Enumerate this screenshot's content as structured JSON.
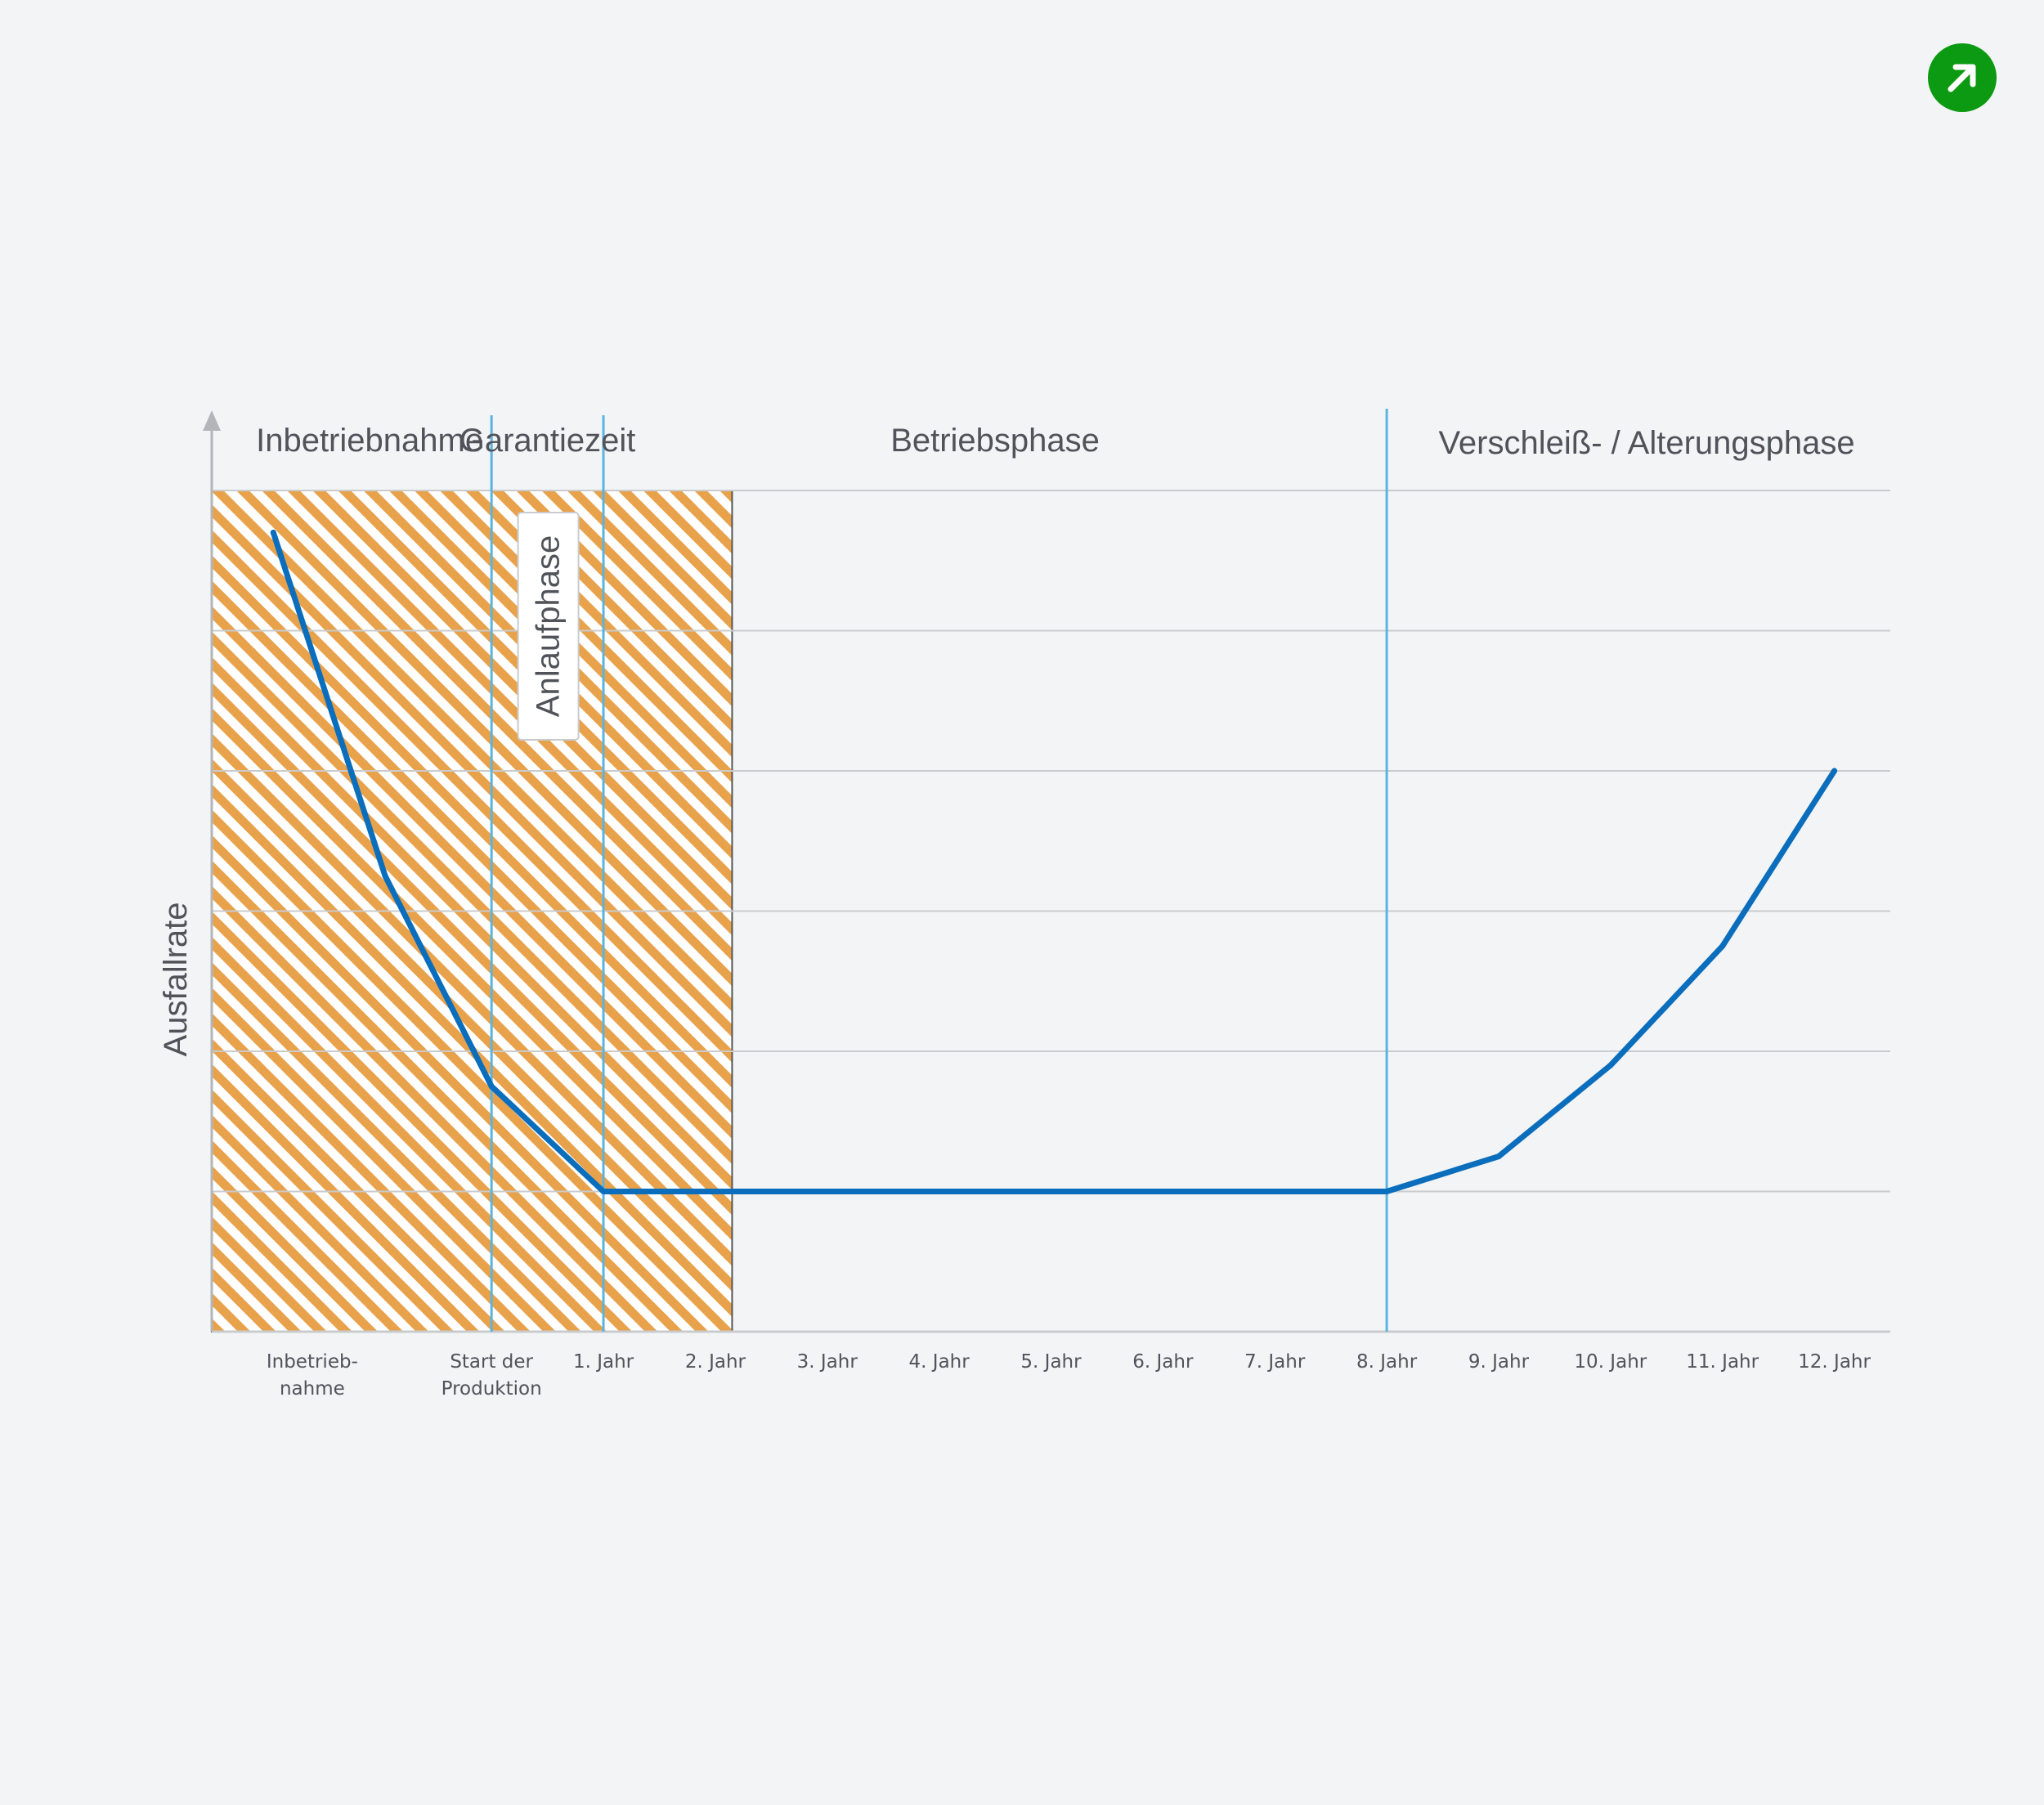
{
  "controls": {
    "expand_icon": "arrow-up-right-icon",
    "expand_color": "#0b9a12"
  },
  "chart_data": {
    "type": "line",
    "title": "",
    "ylabel": "Ausfallrate",
    "xlabel": "",
    "grid": true,
    "legend": "none",
    "categories": [
      "Inbetrieb-\nnahme",
      "",
      "Start der\nProduktion",
      "1. Jahr",
      "2. Jahr",
      "3. Jahr",
      "4. Jahr",
      "5. Jahr",
      "6. Jahr",
      "7. Jahr",
      "8. Jahr",
      "9. Jahr",
      "10. Jahr",
      "11. Jahr",
      "12. Jahr"
    ],
    "tick_labels": [
      {
        "index": 0.5,
        "text": "Inbetrieb-\nnahme"
      },
      {
        "index": 2.0,
        "text": "Start der\nProduktion"
      },
      {
        "index": 3.0,
        "text": "1. Jahr"
      },
      {
        "index": 4.0,
        "text": "2. Jahr"
      },
      {
        "index": 5.0,
        "text": "3. Jahr"
      },
      {
        "index": 6.0,
        "text": "4. Jahr"
      },
      {
        "index": 7.0,
        "text": "5. Jahr"
      },
      {
        "index": 8.0,
        "text": "6. Jahr"
      },
      {
        "index": 9.0,
        "text": "7. Jahr"
      },
      {
        "index": 10.0,
        "text": "8. Jahr"
      },
      {
        "index": 11.0,
        "text": "9. Jahr"
      },
      {
        "index": 12.0,
        "text": "10. Jahr"
      },
      {
        "index": 13.0,
        "text": "11. Jahr"
      },
      {
        "index": 14.0,
        "text": "12. Jahr"
      }
    ],
    "series": [
      {
        "x": [
          0.05,
          1.05,
          2.0,
          3.0,
          4.0,
          5.0,
          6.0,
          7.0,
          8.0,
          9.0,
          10.0,
          11.0,
          12.0,
          13.0,
          14.0
        ],
        "values": [
          5.7,
          3.25,
          1.75,
          1.0,
          1.0,
          1.0,
          1.0,
          1.0,
          1.0,
          1.0,
          1.0,
          1.25,
          1.9,
          2.75,
          4.0
        ],
        "color": "#0a6ebd"
      }
    ],
    "xlim": [
      -0.5,
      14.5
    ],
    "ylim": [
      0,
      6
    ],
    "yticks": [
      0,
      1,
      2,
      3,
      4,
      5,
      6
    ],
    "phases": [
      {
        "label": "Inbetriebnahme",
        "start": -0.5,
        "end": 2.0
      },
      {
        "label": "Garantiezeit",
        "start": 2.0,
        "end": 3.0
      },
      {
        "label": "Betriebsphase",
        "start": 3.0,
        "end": 10.0
      },
      {
        "label": "Verschleiß- / Alterungsphase",
        "start": 10.0,
        "end": 14.5
      }
    ],
    "phase_dividers": [
      2.0,
      3.0,
      10.0
    ],
    "divider_color": "#5ab4e0",
    "hatched_region": {
      "start": -0.5,
      "end": 4.15,
      "color": "#e8a24c"
    },
    "annotation": {
      "text": "Anlaufphase",
      "x": 2.5
    }
  }
}
